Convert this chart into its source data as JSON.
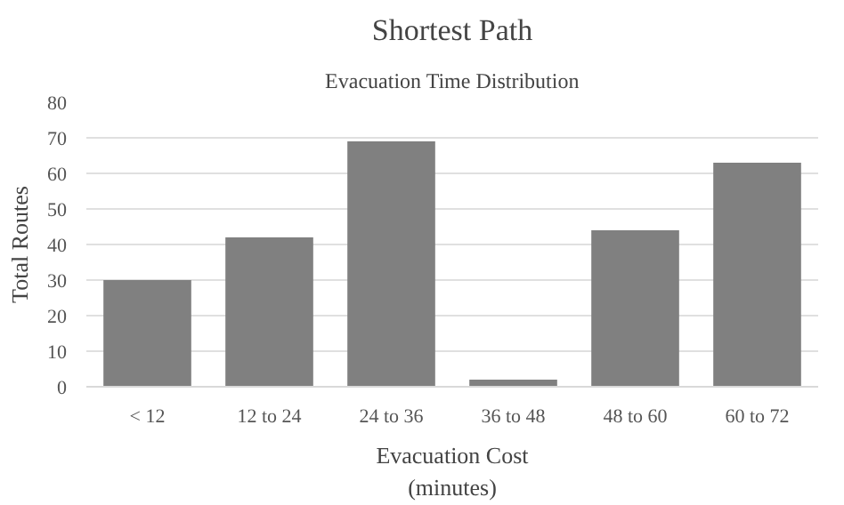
{
  "chart_data": {
    "type": "bar",
    "title": "Shortest Path",
    "subtitle": "Evacuation Time Distribution",
    "xlabel": "Evacuation Cost\n(minutes)",
    "ylabel": "Total Routes",
    "categories": [
      "< 12",
      "12 to 24",
      "24 to 36",
      "36 to 48",
      "48 to 60",
      "60 to 72"
    ],
    "values": [
      30,
      42,
      69,
      2,
      44,
      63
    ],
    "color": "#808080",
    "ylim": [
      0,
      80
    ],
    "yticks": [
      0,
      10,
      20,
      30,
      40,
      50,
      60,
      70,
      80
    ],
    "grid": "y"
  }
}
